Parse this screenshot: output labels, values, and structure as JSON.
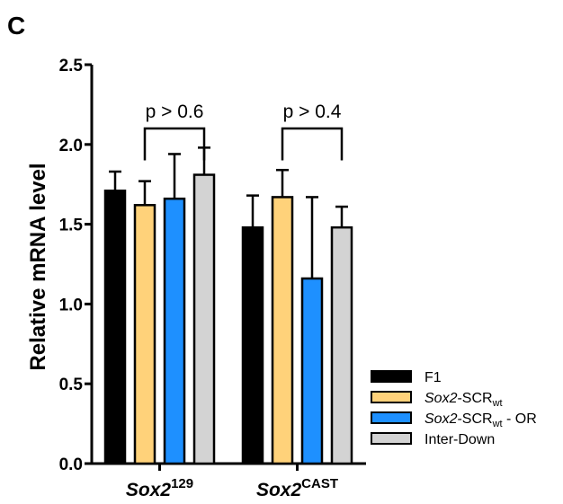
{
  "panel_label": "C",
  "chart_data": {
    "type": "bar",
    "title": "",
    "xlabel": "",
    "ylabel": "Relative mRNA level",
    "ylim": [
      0,
      2.5
    ],
    "yticks": [
      "0.0",
      "0.5",
      "1.0",
      "1.5",
      "2.0",
      "2.5"
    ],
    "categories": [
      {
        "base": "Sox2",
        "sup": "129"
      },
      {
        "base": "Sox2",
        "sup": "CAST"
      }
    ],
    "series": [
      {
        "label_main": "F1",
        "label_sub": "",
        "label_tail": "",
        "color": "#000000",
        "values": [
          1.71,
          1.48
        ],
        "errors": [
          0.12,
          0.2
        ]
      },
      {
        "label_main": "Sox2",
        "label_mid": "-SCR",
        "label_sub": "wt",
        "label_tail": "",
        "color": "#FFD27A",
        "values": [
          1.62,
          1.67
        ],
        "errors": [
          0.15,
          0.17
        ]
      },
      {
        "label_main": "Sox2",
        "label_mid": "-SCR",
        "label_sub": "wt",
        "label_tail": " - OR",
        "color": "#1E90FF",
        "values": [
          1.66,
          1.16
        ],
        "errors": [
          0.28,
          0.51
        ]
      },
      {
        "label_main": "Inter-Down",
        "label_sub": "",
        "label_tail": "",
        "color": "#D3D3D3",
        "values": [
          1.81,
          1.48
        ],
        "errors": [
          0.17,
          0.13
        ]
      }
    ],
    "significance": [
      {
        "category_index": 0,
        "label": "p > 0.6",
        "from_series": 1,
        "to_series": 3
      },
      {
        "category_index": 1,
        "label": "p > 0.4",
        "from_series": 1,
        "to_series": 3
      }
    ],
    "legend_position": "bottom-right",
    "grid": false
  }
}
